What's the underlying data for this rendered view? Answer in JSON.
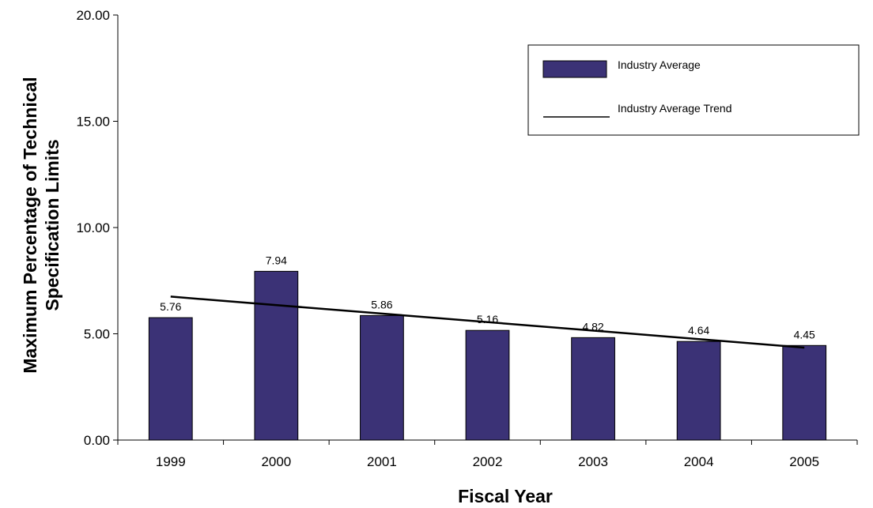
{
  "chart_data": {
    "type": "bar",
    "categories": [
      "1999",
      "2000",
      "2001",
      "2002",
      "2003",
      "2004",
      "2005"
    ],
    "series": [
      {
        "name": "Industry Average",
        "values": [
          5.76,
          7.94,
          5.86,
          5.16,
          4.82,
          4.64,
          4.45
        ],
        "color": "#3b3276"
      }
    ],
    "data_labels": [
      "5.76",
      "7.94",
      "5.86",
      "5.16",
      "4.82",
      "4.64",
      "4.45"
    ],
    "trend": {
      "name": "Industry Average Trend",
      "start": 6.75,
      "end": 4.35,
      "color": "#000000"
    },
    "title": "",
    "xlabel": "Fiscal Year",
    "ylabel_lines": [
      "Maximum Percentage of Technical",
      "Specification Limits"
    ],
    "ylim": [
      0,
      20
    ],
    "yticks": [
      "0.00",
      "5.00",
      "10.00",
      "15.00",
      "20.00"
    ],
    "grid": false,
    "legend_position": "top-right"
  }
}
